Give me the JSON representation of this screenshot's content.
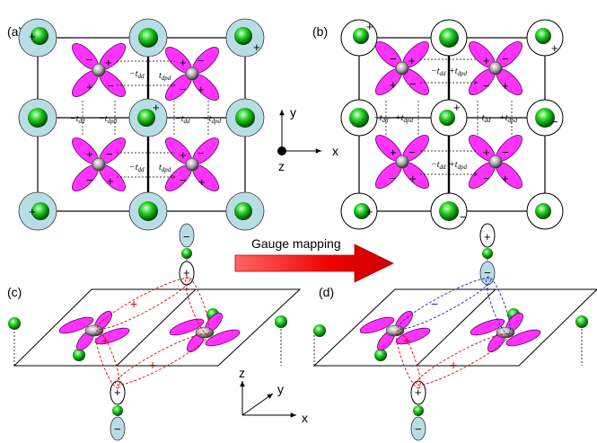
{
  "panels": {
    "a": "(a)",
    "b": "(b)",
    "c": "(c)",
    "d": "(d)"
  },
  "gauge_mapping": "Gauge mapping",
  "axes_top": {
    "x": "x",
    "y": "y",
    "z": "z"
  },
  "axes_bottom": {
    "x": "x",
    "y": "y",
    "z": "z"
  },
  "hop_a": {
    "tdd": "−t",
    "tdd_sub": "dd",
    "tdpd": "t",
    "tdpd_sub": "dpd"
  },
  "hop_b": {
    "tdd": "−t",
    "tdd_sub": "dd",
    "tdpd": "+t",
    "tdpd_sub": "dpd"
  },
  "signs": {
    "plus": "+",
    "minus": "−"
  },
  "colors": {
    "orbital_d": "#ff33ff",
    "orbital_d_dark": "#cc00cc",
    "ion_green": "#00cc00",
    "halo": "#b9dde6",
    "arrow": "#ee0000",
    "bond_red": "#e00000",
    "bond_blue": "#2020c0"
  }
}
